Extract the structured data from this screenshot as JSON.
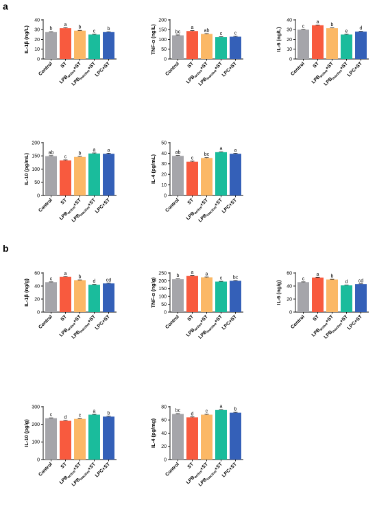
{
  "panels": [
    "a",
    "b"
  ],
  "colors": [
    "#a5a5aa",
    "#f85a3e",
    "#fbb866",
    "#1abc9c",
    "#3460b8"
  ],
  "chart_data": [
    {
      "panel": "a",
      "type": "bar",
      "ylabel": "IL-1β (ng/L)",
      "ylim": [
        0,
        40
      ],
      "yticks": [
        0,
        10,
        20,
        30,
        40
      ],
      "categories": [
        "Control",
        "ST",
        "LPBactive+ST",
        "LPBinactive+ST",
        "LPC+ST"
      ],
      "values": [
        27.5,
        31.5,
        29,
        25,
        27.5
      ],
      "errors": [
        0.4,
        0.4,
        0.3,
        0.3,
        0.3
      ],
      "letters": [
        "b",
        "a",
        "b",
        "c",
        "b"
      ]
    },
    {
      "panel": "a",
      "type": "bar",
      "ylabel": "TNF-α (ng/L)",
      "ylim": [
        0,
        200
      ],
      "yticks": [
        0,
        50,
        100,
        150,
        200
      ],
      "categories": [
        "Control",
        "ST",
        "LPBactive+ST",
        "LPBinactive+ST",
        "LPC+ST"
      ],
      "values": [
        121,
        143,
        128,
        112,
        114
      ],
      "errors": [
        2,
        2,
        2,
        2,
        2
      ],
      "letters": [
        "bc",
        "a",
        "ab",
        "c",
        "c"
      ]
    },
    {
      "panel": "a",
      "type": "bar",
      "ylabel": "IL-6 (ng/L)",
      "ylim": [
        0,
        40
      ],
      "yticks": [
        0,
        10,
        20,
        30,
        40
      ],
      "categories": [
        "Control",
        "ST",
        "LPBactive+ST",
        "LPBinactive+ST",
        "LPC+ST"
      ],
      "values": [
        30,
        34.5,
        31.5,
        25,
        28
      ],
      "errors": [
        0.3,
        0.3,
        0.3,
        0.3,
        0.3
      ],
      "letters": [
        "c",
        "a",
        "b",
        "e",
        "d"
      ]
    },
    {
      "panel": "a",
      "type": "bar",
      "ylabel": "IL-10 (pg/mL)",
      "ylim": [
        0,
        200
      ],
      "yticks": [
        0,
        50,
        100,
        150,
        200
      ],
      "categories": [
        "Control",
        "ST",
        "LPBactive+ST",
        "LPBinactive+ST",
        "LPC+ST"
      ],
      "values": [
        149,
        133,
        146,
        159,
        158
      ],
      "errors": [
        2,
        2,
        2,
        2,
        2
      ],
      "letters": [
        "ab",
        "c",
        "b",
        "a",
        "a"
      ]
    },
    {
      "panel": "a",
      "type": "bar",
      "ylabel": "IL-4 (pg/mL)",
      "ylim": [
        0,
        50
      ],
      "yticks": [
        0,
        10,
        20,
        30,
        40,
        50
      ],
      "categories": [
        "Control",
        "ST",
        "LPBactive+ST",
        "LPBinactive+ST",
        "LPC+ST"
      ],
      "values": [
        37.5,
        32,
        35.5,
        41,
        39.5
      ],
      "errors": [
        0.4,
        0.5,
        0.4,
        0.4,
        0.4
      ],
      "letters": [
        "ab",
        "c",
        "bc",
        "a",
        "a"
      ]
    },
    {
      "panel": "b",
      "type": "bar",
      "ylabel": "IL-1β (ng/g)",
      "ylim": [
        0,
        60
      ],
      "yticks": [
        0,
        20,
        40,
        60
      ],
      "categories": [
        "Control",
        "ST",
        "LPBactive+ST",
        "LPBinactive+ST",
        "LPC+ST"
      ],
      "values": [
        46,
        54,
        49,
        42,
        44
      ],
      "errors": [
        0.4,
        0.4,
        0.4,
        0.4,
        0.4
      ],
      "letters": [
        "c",
        "a",
        "b",
        "d",
        "cd"
      ]
    },
    {
      "panel": "b",
      "type": "bar",
      "ylabel": "TNF-α (ng/g)",
      "ylim": [
        0,
        250
      ],
      "yticks": [
        0,
        50,
        100,
        150,
        200,
        250
      ],
      "categories": [
        "Control",
        "ST",
        "LPBactive+ST",
        "LPBinactive+ST",
        "LPC+ST"
      ],
      "values": [
        210,
        232,
        222,
        195,
        200
      ],
      "errors": [
        2,
        2,
        2,
        2,
        2
      ],
      "letters": [
        "b",
        "a",
        "a",
        "c",
        "bc"
      ]
    },
    {
      "panel": "b",
      "type": "bar",
      "ylabel": "IL-6 (ng/g)",
      "ylim": [
        0,
        60
      ],
      "yticks": [
        0,
        20,
        40,
        60
      ],
      "categories": [
        "Control",
        "ST",
        "LPBactive+ST",
        "LPBinactive+ST",
        "LPC+ST"
      ],
      "values": [
        46,
        53,
        50,
        41,
        43
      ],
      "errors": [
        0.4,
        0.4,
        0.4,
        0.4,
        0.4
      ],
      "letters": [
        "c",
        "a",
        "b",
        "d",
        "cd"
      ]
    },
    {
      "panel": "b",
      "type": "bar",
      "ylabel": "IL-10 (pg/g)",
      "ylim": [
        0,
        300
      ],
      "yticks": [
        0,
        100,
        200,
        300
      ],
      "categories": [
        "Control",
        "ST",
        "LPBactive+ST",
        "LPBinactive+ST",
        "LPC+ST"
      ],
      "values": [
        235,
        220,
        231,
        255,
        244
      ],
      "errors": [
        2,
        2,
        2,
        2,
        2
      ],
      "letters": [
        "c",
        "d",
        "c",
        "a",
        "b"
      ]
    },
    {
      "panel": "b",
      "type": "bar",
      "ylabel": "IL-4 (pg/mg)",
      "ylim": [
        0,
        80
      ],
      "yticks": [
        0,
        20,
        40,
        60,
        80
      ],
      "categories": [
        "Control",
        "ST",
        "LPBactive+ST",
        "LPBinactive+ST",
        "LPC+ST"
      ],
      "values": [
        69,
        64,
        68,
        75,
        71
      ],
      "errors": [
        0.6,
        0.6,
        0.6,
        0.6,
        0.6
      ],
      "letters": [
        "bc",
        "d",
        "c",
        "a",
        "b"
      ]
    }
  ]
}
